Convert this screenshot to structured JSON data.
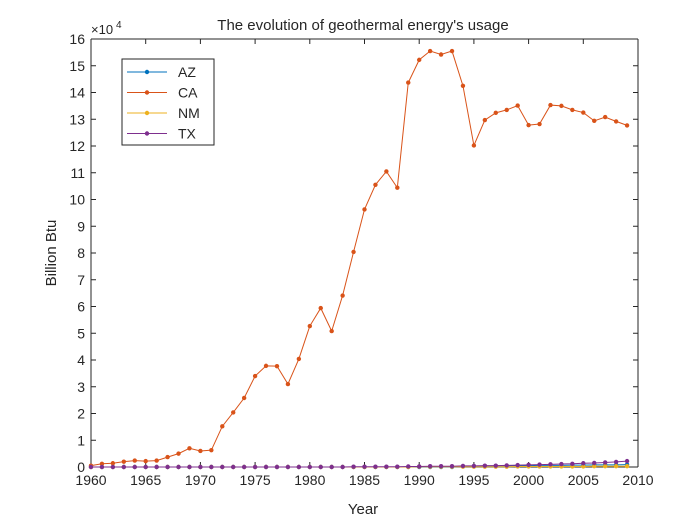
{
  "chart_data": {
    "type": "line",
    "title": "The evolution of geothermal energy's usage",
    "xlabel": "Year",
    "ylabel": "Billion Btu",
    "y_exponent_label": "×10",
    "y_exponent_power": "4",
    "xlim": [
      1960,
      2010
    ],
    "ylim": [
      0,
      16
    ],
    "x_ticks": [
      "1960",
      "1965",
      "1970",
      "1975",
      "1980",
      "1985",
      "1990",
      "1995",
      "2000",
      "2005",
      "2010"
    ],
    "y_ticks": [
      "0",
      "1",
      "2",
      "3",
      "4",
      "5",
      "6",
      "7",
      "8",
      "9",
      "10",
      "11",
      "12",
      "13",
      "14",
      "15",
      "16"
    ],
    "y_scale_note": "values in units of 10^4 Billion Btu",
    "grid": false,
    "legend_position": "top-left",
    "x": [
      1960,
      1961,
      1962,
      1963,
      1964,
      1965,
      1966,
      1967,
      1968,
      1969,
      1970,
      1971,
      1972,
      1973,
      1974,
      1975,
      1976,
      1977,
      1978,
      1979,
      1980,
      1981,
      1982,
      1983,
      1984,
      1985,
      1986,
      1987,
      1988,
      1989,
      1990,
      1991,
      1992,
      1993,
      1994,
      1995,
      1996,
      1997,
      1998,
      1999,
      2000,
      2001,
      2002,
      2003,
      2004,
      2005,
      2006,
      2007,
      2008,
      2009
    ],
    "series": [
      {
        "name": "AZ",
        "color": "#0072BD",
        "values": [
          0,
          0,
          0,
          0,
          0,
          0,
          0,
          0,
          0,
          0,
          0,
          0,
          0,
          0,
          0,
          0,
          0,
          0,
          0,
          0,
          0,
          0,
          0,
          0,
          0,
          0,
          0,
          0,
          0,
          0,
          0,
          0,
          0,
          0,
          0.02,
          0.03,
          0.03,
          0.04,
          0.04,
          0.05,
          0.05,
          0.06,
          0.06,
          0.06,
          0.07,
          0.07,
          0.08,
          0.08,
          0.08,
          0.09
        ]
      },
      {
        "name": "CA",
        "color": "#D95319",
        "values": [
          0.05,
          0.12,
          0.14,
          0.2,
          0.24,
          0.22,
          0.24,
          0.37,
          0.5,
          0.7,
          0.6,
          0.63,
          1.52,
          2.04,
          2.58,
          3.4,
          3.78,
          3.77,
          3.1,
          4.04,
          5.27,
          5.94,
          5.08,
          6.41,
          8.04,
          9.63,
          10.55,
          11.05,
          10.44,
          14.37,
          15.22,
          15.55,
          15.42,
          15.55,
          14.25,
          12.02,
          12.97,
          13.24,
          13.35,
          13.51,
          12.78,
          12.82,
          13.53,
          13.5,
          13.35,
          13.25,
          12.94,
          13.08,
          12.92,
          12.77
        ]
      },
      {
        "name": "NM",
        "color": "#EDB120",
        "values": [
          0,
          0,
          0,
          0,
          0,
          0,
          0,
          0,
          0,
          0,
          0,
          0,
          0,
          0,
          0,
          0,
          0,
          0,
          0,
          0,
          0,
          0,
          0,
          0,
          0,
          0,
          0,
          0,
          0,
          0,
          0.01,
          0.01,
          0.01,
          0.01,
          0.01,
          0.01,
          0.01,
          0.01,
          0.01,
          0.02,
          0.02,
          0.02,
          0.02,
          0.02,
          0.02,
          0.02,
          0.03,
          0.03,
          0.03,
          0.03
        ]
      },
      {
        "name": "TX",
        "color": "#7E2F8E",
        "values": [
          0,
          0,
          0,
          0,
          0,
          0,
          0,
          0,
          0,
          0,
          0,
          0,
          0,
          0,
          0,
          0,
          0,
          0,
          0,
          0,
          0,
          0,
          0,
          0,
          0.01,
          0.01,
          0.01,
          0.01,
          0.01,
          0.02,
          0.02,
          0.03,
          0.03,
          0.03,
          0.04,
          0.04,
          0.05,
          0.05,
          0.06,
          0.07,
          0.08,
          0.09,
          0.1,
          0.11,
          0.12,
          0.14,
          0.15,
          0.17,
          0.19,
          0.22
        ]
      }
    ]
  }
}
